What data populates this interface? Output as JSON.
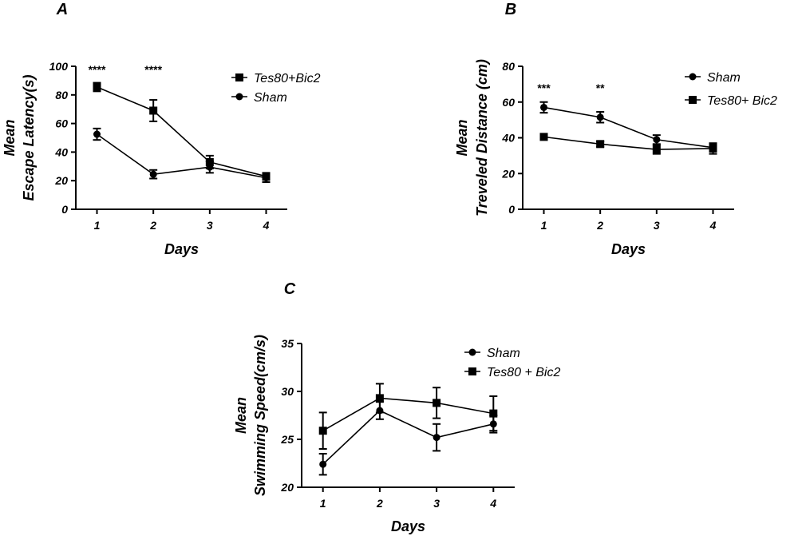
{
  "chart_data": [
    {
      "panel": "A",
      "type": "line",
      "xlabel": "Days",
      "ylabel_line1": "Mean",
      "ylabel_line2": "Escape Latency(s)",
      "categories": [
        "1",
        "2",
        "3",
        "4"
      ],
      "ylim": [
        0,
        100
      ],
      "yticks": [
        "0",
        "20",
        "40",
        "60",
        "80",
        "100"
      ],
      "legend_position": "top-right",
      "series": [
        {
          "name": "Tes80+Bic2",
          "marker": "square",
          "values": [
            85.5,
            69,
            33,
            23
          ],
          "errors": [
            3,
            7.5,
            4.5,
            2.5
          ]
        },
        {
          "name": "Sham",
          "marker": "circle",
          "values": [
            52.5,
            24.5,
            29.5,
            22
          ],
          "errors": [
            4,
            3,
            4,
            3
          ]
        }
      ],
      "annotations": [
        {
          "category": "1",
          "text": "****"
        },
        {
          "category": "2",
          "text": "****"
        }
      ]
    },
    {
      "panel": "B",
      "type": "line",
      "xlabel": "Days",
      "ylabel_line1": "Mean",
      "ylabel_line2": "Treveled Distance (cm)",
      "categories": [
        "1",
        "2",
        "3",
        "4"
      ],
      "ylim": [
        0,
        80
      ],
      "yticks": [
        "0",
        "20",
        "40",
        "60",
        "80"
      ],
      "legend_position": "top-right",
      "series": [
        {
          "name": "Sham",
          "marker": "circle",
          "values": [
            57,
            51.5,
            39,
            34.5
          ],
          "errors": [
            3,
            3,
            2.5,
            2
          ]
        },
        {
          "name": "Tes80+ Bic2",
          "marker": "square",
          "values": [
            40.5,
            36.5,
            33.5,
            34
          ],
          "errors": [
            1.5,
            1.5,
            2.5,
            3
          ]
        }
      ],
      "annotations": [
        {
          "category": "1",
          "text": "***"
        },
        {
          "category": "2",
          "text": "**"
        }
      ]
    },
    {
      "panel": "C",
      "type": "line",
      "xlabel": "Days",
      "ylabel_line1": "Mean",
      "ylabel_line2": "Swimming Speed(cm/s)",
      "categories": [
        "1",
        "2",
        "3",
        "4"
      ],
      "ylim": [
        20,
        35
      ],
      "yticks": [
        "20",
        "25",
        "30",
        "35"
      ],
      "legend_position": "top-right",
      "series": [
        {
          "name": "Sham",
          "marker": "circle",
          "values": [
            22.4,
            28,
            25.2,
            26.6
          ],
          "errors": [
            1.1,
            0.9,
            1.4,
            0.9
          ]
        },
        {
          "name": "Tes80 + Bic2",
          "marker": "square",
          "values": [
            25.9,
            29.3,
            28.8,
            27.7
          ],
          "errors": [
            1.9,
            1.5,
            1.6,
            1.8
          ]
        }
      ],
      "annotations": []
    }
  ]
}
